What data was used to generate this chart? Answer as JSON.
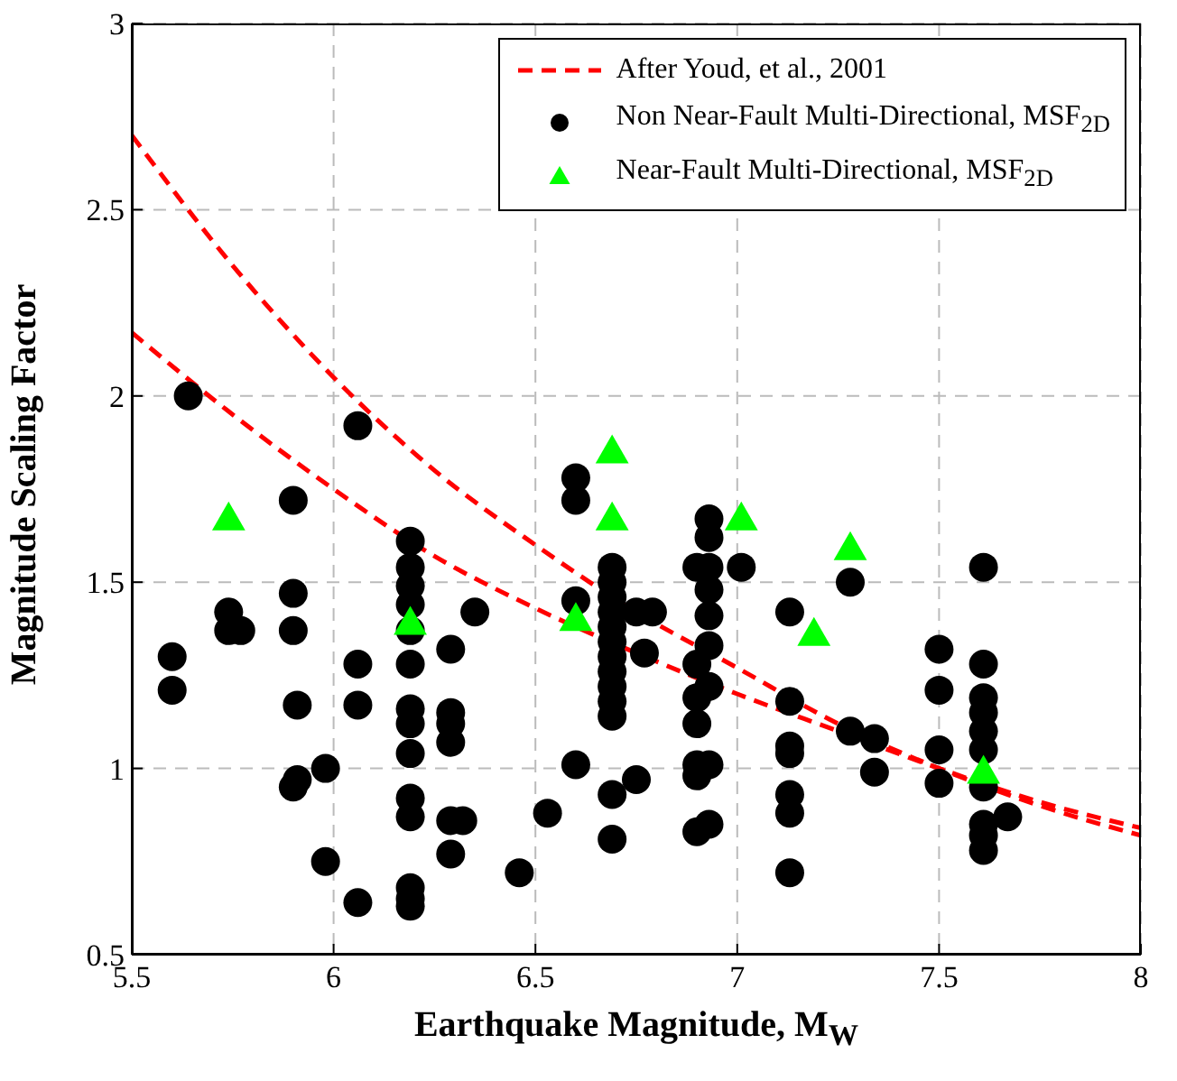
{
  "chart_data": {
    "type": "scatter",
    "xlabel": "Earthquake Magnitude, M$_{W}$",
    "ylabel": "Magnitude Scaling Factor",
    "xlim": [
      5.5,
      8
    ],
    "xticks": [
      5.5,
      6,
      6.5,
      7,
      7.5,
      8
    ],
    "ylim": [
      0.5,
      3
    ],
    "yticks": [
      0.5,
      1,
      1.5,
      2,
      2.5,
      3
    ],
    "grid": true,
    "legend": "top right",
    "series": [
      {
        "name": "After Youd, et al., 2001",
        "type": "line",
        "color": "#ff0000",
        "line_style": "dashed",
        "marker": "none",
        "x": [
          5.5,
          5.75,
          6.0,
          6.25,
          6.5,
          6.75,
          7.0,
          7.25,
          7.5,
          7.75,
          8.0
        ],
        "values": [
          2.7,
          2.35,
          2.05,
          1.8,
          1.6,
          1.42,
          1.27,
          1.12,
          1.0,
          0.9,
          0.82
        ]
      },
      {
        "type": "line",
        "color": "#ff0000",
        "line_style": "dashed",
        "marker": "none",
        "x": [
          5.5,
          5.75,
          6.0,
          6.25,
          6.5,
          6.75,
          7.0,
          7.25,
          7.5,
          7.75,
          8.0
        ],
        "values": [
          2.17,
          1.95,
          1.75,
          1.57,
          1.43,
          1.31,
          1.2,
          1.1,
          1.0,
          0.91,
          0.84
        ]
      },
      {
        "name": "Non Near-Fault Multi-Directional, MSF$_{2D}$",
        "color": "#000000",
        "marker": "circle",
        "x": [
          5.6,
          5.6,
          5.64,
          5.74,
          5.74,
          5.77,
          5.9,
          5.9,
          5.9,
          5.91,
          5.9,
          5.91,
          5.98,
          5.98,
          6.06,
          6.06,
          6.06,
          6.06,
          6.19,
          6.19,
          6.19,
          6.19,
          6.19,
          6.19,
          6.19,
          6.19,
          6.19,
          6.19,
          6.19,
          6.19,
          6.19,
          6.19,
          6.29,
          6.29,
          6.29,
          6.29,
          6.29,
          6.29,
          6.32,
          6.35,
          6.46,
          6.53,
          6.6,
          6.6,
          6.6,
          6.6,
          6.69,
          6.69,
          6.69,
          6.69,
          6.69,
          6.69,
          6.69,
          6.69,
          6.69,
          6.69,
          6.69,
          6.69,
          6.69,
          6.75,
          6.79,
          6.77,
          6.75,
          6.9,
          6.9,
          6.9,
          6.9,
          6.9,
          6.9,
          6.9,
          6.93,
          6.93,
          6.93,
          6.93,
          6.93,
          6.93,
          6.93,
          6.93,
          6.93,
          7.01,
          7.13,
          7.13,
          7.13,
          7.13,
          7.13,
          7.13,
          7.13,
          7.28,
          7.28,
          7.34,
          7.34,
          7.5,
          7.5,
          7.5,
          7.5,
          7.61,
          7.61,
          7.61,
          7.61,
          7.61,
          7.61,
          7.61,
          7.61,
          7.61,
          7.61,
          7.67
        ],
        "values": [
          1.3,
          1.21,
          2.0,
          1.42,
          1.37,
          1.37,
          1.72,
          1.47,
          1.37,
          1.17,
          0.95,
          0.97,
          1.0,
          0.75,
          1.92,
          1.28,
          1.17,
          0.64,
          1.61,
          1.54,
          1.49,
          1.44,
          1.37,
          1.28,
          1.16,
          1.12,
          1.04,
          0.92,
          0.87,
          0.68,
          0.65,
          0.63,
          1.32,
          1.15,
          1.12,
          1.07,
          0.86,
          0.77,
          0.86,
          1.42,
          0.72,
          0.88,
          1.78,
          1.72,
          1.45,
          1.01,
          1.54,
          1.5,
          1.46,
          1.42,
          1.38,
          1.34,
          1.3,
          1.26,
          1.22,
          1.18,
          1.14,
          0.93,
          0.81,
          1.42,
          1.42,
          1.31,
          0.97,
          1.54,
          1.28,
          1.19,
          1.12,
          1.01,
          0.98,
          0.83,
          1.67,
          1.62,
          1.54,
          1.48,
          1.41,
          1.33,
          1.22,
          1.01,
          0.85,
          1.54,
          1.42,
          1.18,
          1.06,
          1.04,
          0.93,
          0.88,
          0.72,
          1.5,
          1.1,
          1.08,
          0.99,
          1.32,
          1.21,
          1.05,
          0.96,
          1.54,
          1.28,
          1.19,
          1.15,
          1.1,
          1.05,
          0.95,
          0.85,
          0.82,
          0.78,
          0.87
        ]
      },
      {
        "name": "Near-Fault Multi-Directional, MSF$_{2D}$",
        "color": "#00ff00",
        "marker": "triangle",
        "x": [
          5.74,
          6.19,
          6.6,
          6.69,
          6.69,
          7.01,
          7.19,
          7.28,
          7.61
        ],
        "values": [
          1.67,
          1.39,
          1.4,
          1.85,
          1.67,
          1.67,
          1.36,
          1.59,
          0.99
        ]
      }
    ]
  }
}
